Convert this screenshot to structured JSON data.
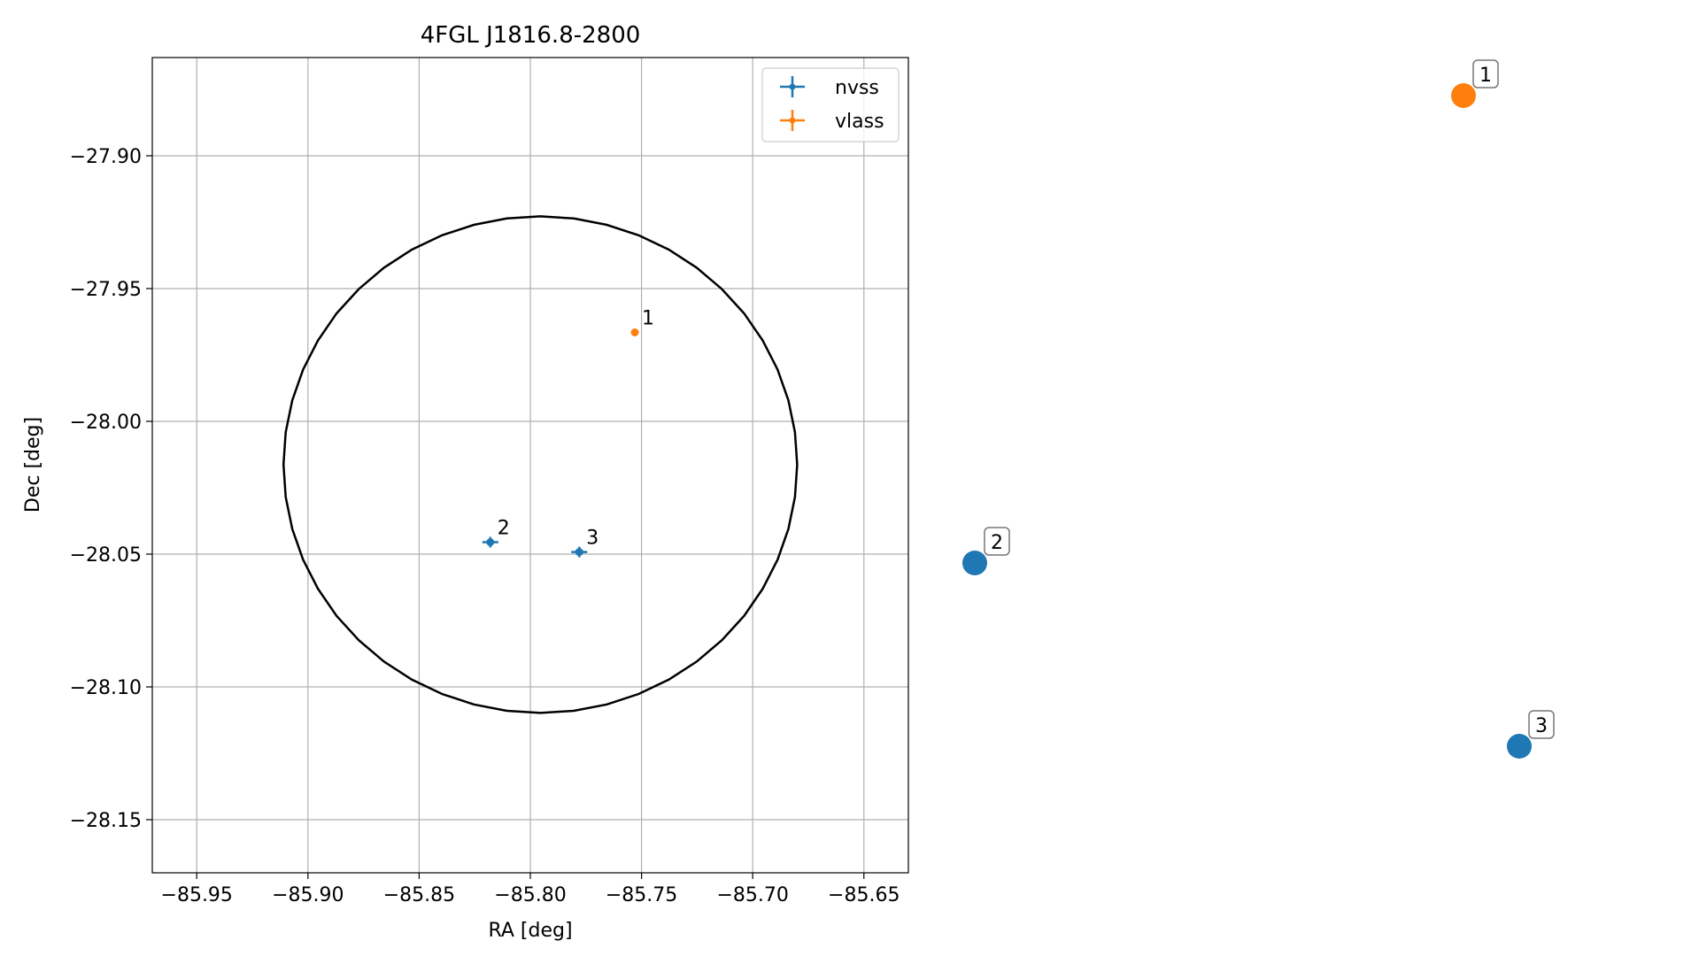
{
  "chart_data": [
    {
      "type": "scatter",
      "title": "4FGL J1816.8-2800",
      "xlabel": "RA [deg]",
      "ylabel": "Dec [deg]",
      "xlim": [
        -85.97,
        -85.63
      ],
      "ylim": [
        -28.17,
        -27.863
      ],
      "xticks": [
        -85.95,
        -85.9,
        -85.85,
        -85.8,
        -85.75,
        -85.7,
        -85.65
      ],
      "yticks": [
        -27.9,
        -27.95,
        -28.0,
        -28.05,
        -28.1,
        -28.15
      ],
      "xtick_labels": [
        "−85.95",
        "−85.90",
        "−85.85",
        "−85.80",
        "−85.75",
        "−85.70",
        "−85.65"
      ],
      "ytick_labels": [
        "−27.90",
        "−27.95",
        "−28.00",
        "−28.05",
        "−28.10",
        "−28.15"
      ],
      "grid": true,
      "legend_placement": "top-right",
      "circle": {
        "center": [
          -85.7955,
          -28.0163
        ],
        "radius_ra": 0.1155,
        "radius_dec": 0.0935,
        "color": "#000000"
      },
      "series": [
        {
          "name": "nvss",
          "color": "#1f77b4",
          "points": [
            {
              "label": "2",
              "x": -85.818,
              "y": -28.0455
            },
            {
              "label": "3",
              "x": -85.778,
              "y": -28.0492
            }
          ]
        },
        {
          "name": "vlass",
          "color": "#ff7f0e",
          "points": [
            {
              "label": "1",
              "x": -85.753,
              "y": -27.9665
            }
          ]
        }
      ]
    },
    {
      "type": "scatter",
      "axes_visible": false,
      "points": [
        {
          "label": "1",
          "series": "vlass",
          "color": "#ff7f0e"
        },
        {
          "label": "2",
          "series": "nvss",
          "color": "#1f77b4"
        },
        {
          "label": "3",
          "series": "nvss",
          "color": "#1f77b4"
        }
      ]
    }
  ]
}
